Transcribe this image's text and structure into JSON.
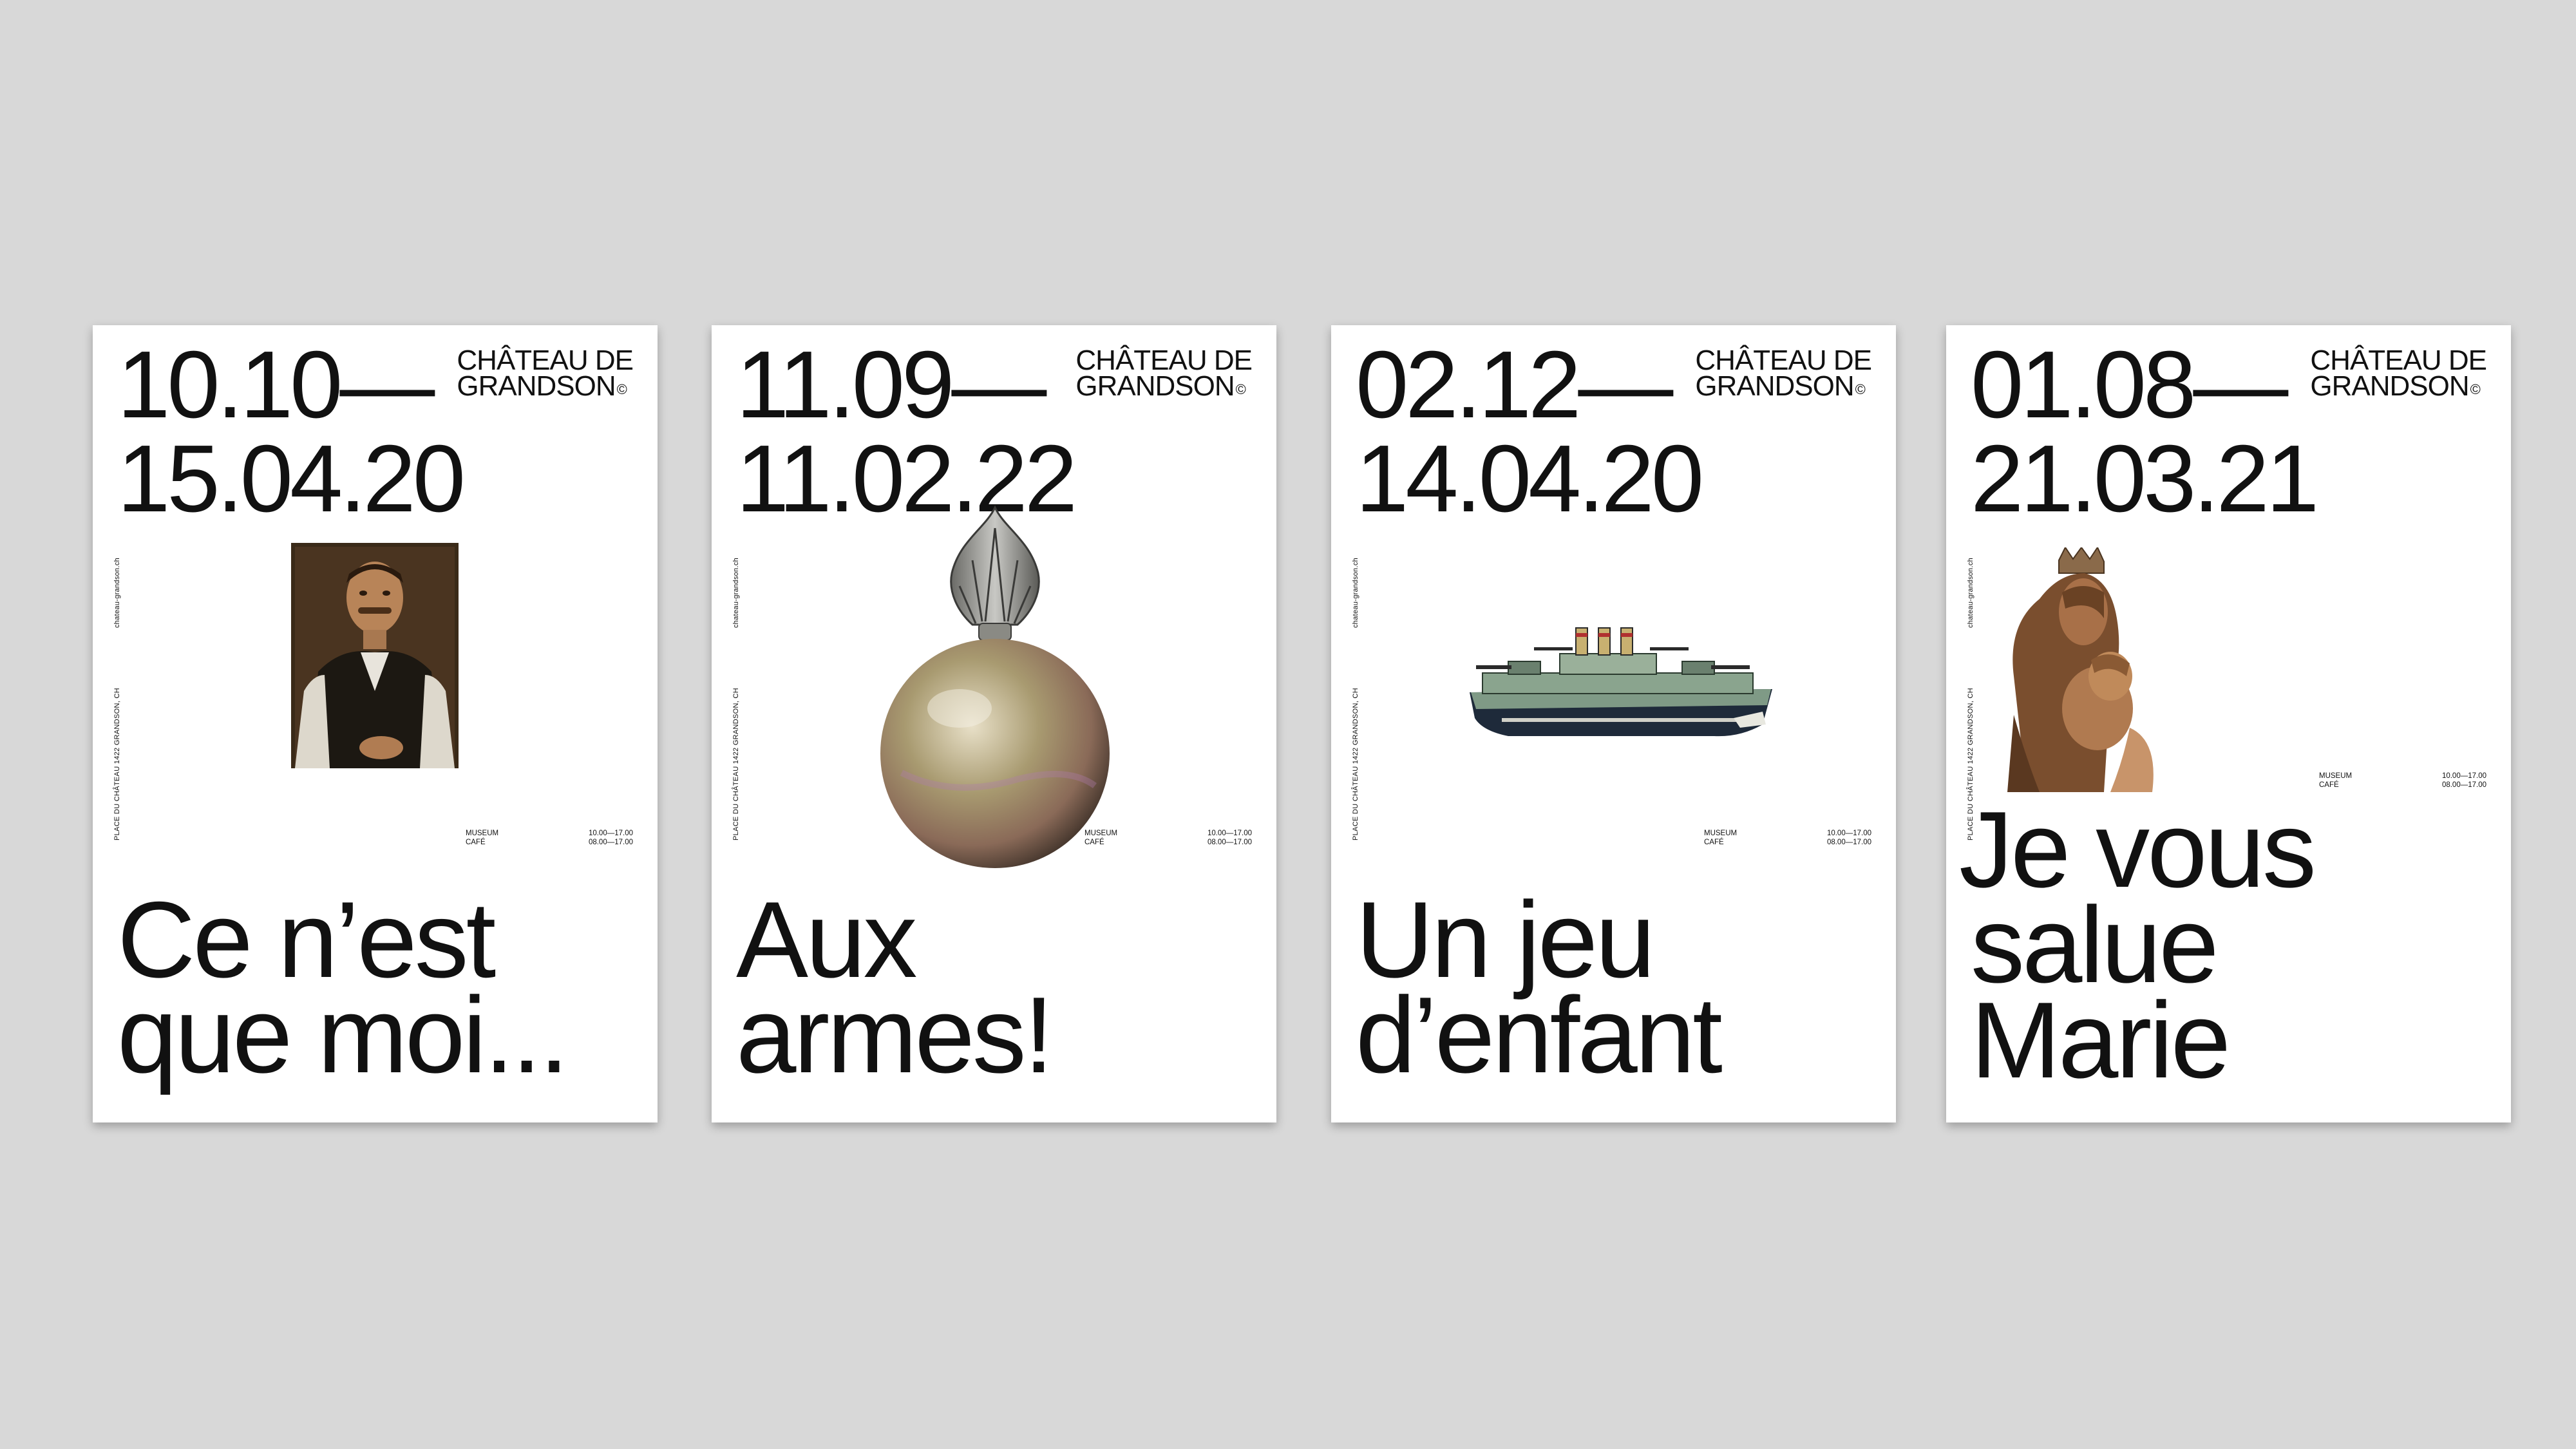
{
  "posters": [
    {
      "date_start": "10.10—",
      "date_end": "15.04.20",
      "brand_line1": "CHÂTEAU DE",
      "brand_line2": "GRANDSON",
      "brand_mark": "©",
      "website": "chateau-grandson.ch",
      "address": "PLACE DU CHÂTEAU 1422 GRANDSON, CH",
      "museum_label": "MUSEUM",
      "museum_hours": "10.00—17.00",
      "cafe_label": "CAFÉ",
      "cafe_hours": "08.00—17.00",
      "headline_line1": "Ce n’est",
      "headline_line2": "que moi...",
      "image": "portrait-painting"
    },
    {
      "date_start": "11.09—",
      "date_end": "11.02.22",
      "brand_line1": "CHÂTEAU DE",
      "brand_line2": "GRANDSON",
      "brand_mark": "©",
      "website": "chateau-grandson.ch",
      "address": "PLACE DU CHÂTEAU 1422 GRANDSON, CH",
      "museum_label": "MUSEUM",
      "museum_hours": "10.00—17.00",
      "cafe_label": "CAFÉ",
      "cafe_hours": "08.00—17.00",
      "headline_line1": "Aux",
      "headline_line2": "armes!",
      "image": "flaming-grenade-ornament"
    },
    {
      "date_start": "02.12—",
      "date_end": "14.04.20",
      "brand_line1": "CHÂTEAU DE",
      "brand_line2": "GRANDSON",
      "brand_mark": "©",
      "website": "chateau-grandson.ch",
      "address": "PLACE DU CHÂTEAU 1422 GRANDSON, CH",
      "museum_label": "MUSEUM",
      "museum_hours": "10.00—17.00",
      "cafe_label": "CAFÉ",
      "cafe_hours": "08.00—17.00",
      "headline_line1": "Un jeu",
      "headline_line2": "d’enfant",
      "image": "toy-battleship"
    },
    {
      "date_start": "01.08—",
      "date_end": "21.03.21",
      "brand_line1": "CHÂTEAU DE",
      "brand_line2": "GRANDSON",
      "brand_mark": "©",
      "website": "chateau-grandson.ch",
      "address": "PLACE DU CHÂTEAU 1422 GRANDSON, CH",
      "museum_label": "MUSEUM",
      "museum_hours": "10.00—17.00",
      "cafe_label": "CAFÉ",
      "cafe_hours": "08.00—17.00",
      "headline_line1": "Je vous",
      "headline_line2": "salue",
      "headline_line3": "Marie",
      "image": "madonna-sculpture"
    }
  ]
}
